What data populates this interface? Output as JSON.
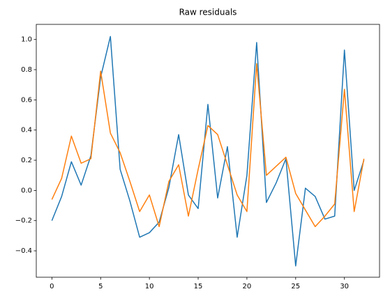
{
  "chart_data": {
    "type": "line",
    "title": "Raw residuals",
    "x": [
      0,
      1,
      2,
      3,
      4,
      5,
      6,
      7,
      8,
      9,
      10,
      11,
      12,
      13,
      14,
      15,
      16,
      17,
      18,
      19,
      20,
      21,
      22,
      23,
      24,
      25,
      26,
      27,
      28,
      29,
      30,
      31,
      32
    ],
    "series": [
      {
        "color": "#1f77b4",
        "values": [
          -0.2,
          -0.04,
          0.19,
          0.035,
          0.23,
          0.75,
          1.02,
          0.14,
          -0.07,
          -0.31,
          -0.28,
          -0.21,
          0.02,
          0.37,
          -0.03,
          -0.12,
          0.57,
          -0.05,
          0.29,
          -0.31,
          0.1,
          0.98,
          -0.08,
          0.05,
          0.21,
          -0.5,
          0.015,
          -0.04,
          -0.19,
          -0.17,
          0.93,
          0.0,
          0.2
        ]
      },
      {
        "color": "#ff7f0e",
        "values": [
          -0.06,
          0.08,
          0.36,
          0.18,
          0.21,
          0.79,
          0.38,
          0.25,
          0.06,
          -0.14,
          -0.03,
          -0.24,
          0.06,
          0.17,
          -0.17,
          0.14,
          0.43,
          0.37,
          0.17,
          -0.03,
          -0.14,
          0.84,
          0.1,
          0.16,
          0.22,
          -0.02,
          -0.13,
          -0.24,
          -0.17,
          -0.09,
          0.67,
          -0.14,
          0.21
        ]
      }
    ],
    "xlim": [
      -1.6,
      33.6
    ],
    "xticks": [
      0,
      5,
      10,
      15,
      20,
      25,
      30
    ],
    "ylim": [
      -0.575,
      1.1
    ],
    "yticks": [
      {
        "value": -0.4,
        "label": "−0.4"
      },
      {
        "value": -0.2,
        "label": "−0.2"
      },
      {
        "value": 0,
        "label": "0.0"
      },
      0.2,
      0.4,
      0.6,
      0.8,
      {
        "value": 1,
        "label": "1.0"
      }
    ],
    "grid": false
  }
}
